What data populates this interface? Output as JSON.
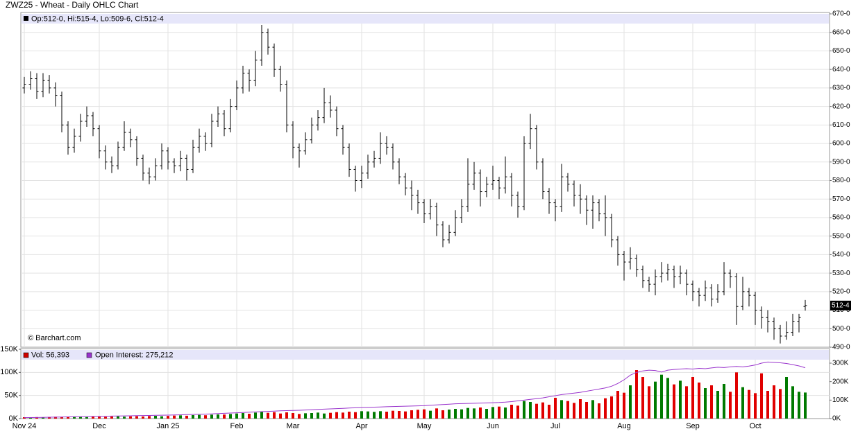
{
  "chart_data": [
    {
      "type": "ohlc",
      "title": "ZWZ25 - Wheat - Daily OHLC Chart",
      "legend_text": "Op:512-0, Hi:515-4, Lo:509-6, Cl:512-4",
      "watermark": "© Barchart.com",
      "color": "#000000",
      "grid": true,
      "ylim": [
        490,
        670
      ],
      "yticks": [
        {
          "value": 490,
          "label": "490-0"
        },
        {
          "value": 500,
          "label": "500-0"
        },
        {
          "value": 510,
          "label": "510-0"
        },
        {
          "value": 520,
          "label": "520-0"
        },
        {
          "value": 530,
          "label": "530-0"
        },
        {
          "value": 540,
          "label": "540-0"
        },
        {
          "value": 550,
          "label": "550-0"
        },
        {
          "value": 560,
          "label": "560-0"
        },
        {
          "value": 570,
          "label": "570-0"
        },
        {
          "value": 580,
          "label": "580-0"
        },
        {
          "value": 590,
          "label": "590-0"
        },
        {
          "value": 600,
          "label": "600-0"
        },
        {
          "value": 610,
          "label": "610-0"
        },
        {
          "value": 620,
          "label": "620-0"
        },
        {
          "value": 630,
          "label": "630-0"
        },
        {
          "value": 640,
          "label": "640-0"
        },
        {
          "value": 650,
          "label": "650-0"
        },
        {
          "value": 660,
          "label": "660-0"
        },
        {
          "value": 670,
          "label": "670-0"
        }
      ],
      "last_price_label": {
        "value": 512.5,
        "label": "512-4"
      },
      "ohlc": [
        [
          630,
          636,
          627,
          632
        ],
        [
          632,
          639,
          629,
          635
        ],
        [
          635,
          638,
          624,
          628
        ],
        [
          628,
          638,
          625,
          634
        ],
        [
          634,
          637,
          627,
          630
        ],
        [
          630,
          633,
          620,
          626
        ],
        [
          626,
          628,
          606,
          610
        ],
        [
          610,
          612,
          594,
          598
        ],
        [
          598,
          608,
          595,
          604
        ],
        [
          604,
          616,
          601,
          612
        ],
        [
          612,
          620,
          609,
          615
        ],
        [
          615,
          617,
          604,
          608
        ],
        [
          608,
          610,
          592,
          596
        ],
        [
          596,
          599,
          586,
          590
        ],
        [
          590,
          593,
          584,
          588
        ],
        [
          588,
          601,
          586,
          598
        ],
        [
          598,
          612,
          596,
          606
        ],
        [
          606,
          608,
          598,
          602
        ],
        [
          602,
          604,
          588,
          592
        ],
        [
          592,
          594,
          580,
          584
        ],
        [
          584,
          587,
          578,
          582
        ],
        [
          582,
          592,
          580,
          588
        ],
        [
          588,
          600,
          586,
          596
        ],
        [
          596,
          598,
          586,
          590
        ],
        [
          590,
          592,
          584,
          588
        ],
        [
          588,
          596,
          585,
          592
        ],
        [
          592,
          594,
          580,
          586
        ],
        [
          586,
          602,
          584,
          598
        ],
        [
          598,
          608,
          595,
          604
        ],
        [
          604,
          606,
          596,
          600
        ],
        [
          600,
          616,
          598,
          612
        ],
        [
          612,
          620,
          609,
          616
        ],
        [
          616,
          618,
          604,
          608
        ],
        [
          608,
          624,
          606,
          620
        ],
        [
          620,
          634,
          618,
          630
        ],
        [
          630,
          642,
          627,
          638
        ],
        [
          638,
          640,
          628,
          634
        ],
        [
          634,
          650,
          631,
          645
        ],
        [
          645,
          664,
          642,
          660
        ],
        [
          660,
          662,
          648,
          652
        ],
        [
          652,
          654,
          636,
          640
        ],
        [
          640,
          642,
          628,
          632
        ],
        [
          632,
          634,
          606,
          610
        ],
        [
          610,
          612,
          592,
          598
        ],
        [
          598,
          600,
          587,
          596
        ],
        [
          596,
          606,
          594,
          602
        ],
        [
          602,
          614,
          600,
          610
        ],
        [
          610,
          618,
          607,
          614
        ],
        [
          614,
          630,
          611,
          622
        ],
        [
          622,
          626,
          614,
          618
        ],
        [
          618,
          620,
          604,
          608
        ],
        [
          608,
          610,
          594,
          598
        ],
        [
          598,
          600,
          582,
          586
        ],
        [
          586,
          588,
          574,
          580
        ],
        [
          580,
          588,
          576,
          584
        ],
        [
          584,
          594,
          581,
          590
        ],
        [
          590,
          596,
          587,
          592
        ],
        [
          592,
          606,
          589,
          600
        ],
        [
          600,
          604,
          594,
          598
        ],
        [
          598,
          600,
          586,
          590
        ],
        [
          590,
          592,
          578,
          582
        ],
        [
          582,
          584,
          572,
          576
        ],
        [
          576,
          580,
          564,
          572
        ],
        [
          572,
          575,
          562,
          568
        ],
        [
          568,
          570,
          557,
          562
        ],
        [
          562,
          570,
          559,
          566
        ],
        [
          566,
          568,
          550,
          556
        ],
        [
          556,
          558,
          544,
          548
        ],
        [
          548,
          556,
          546,
          552
        ],
        [
          552,
          564,
          550,
          560
        ],
        [
          560,
          570,
          557,
          566
        ],
        [
          566,
          592,
          563,
          578
        ],
        [
          578,
          590,
          575,
          584
        ],
        [
          584,
          586,
          566,
          574
        ],
        [
          574,
          582,
          571,
          578
        ],
        [
          578,
          588,
          575,
          580
        ],
        [
          580,
          582,
          570,
          576
        ],
        [
          576,
          593,
          573,
          582
        ],
        [
          582,
          584,
          566,
          572
        ],
        [
          572,
          574,
          560,
          566
        ],
        [
          566,
          604,
          564,
          600
        ],
        [
          600,
          616,
          597,
          608
        ],
        [
          608,
          610,
          586,
          590
        ],
        [
          590,
          592,
          570,
          574
        ],
        [
          574,
          576,
          562,
          568
        ],
        [
          568,
          570,
          558,
          566
        ],
        [
          566,
          589,
          563,
          582
        ],
        [
          582,
          584,
          574,
          578
        ],
        [
          578,
          580,
          566,
          572
        ],
        [
          572,
          578,
          562,
          570
        ],
        [
          570,
          572,
          556,
          564
        ],
        [
          564,
          572,
          554,
          568
        ],
        [
          568,
          570,
          558,
          562
        ],
        [
          562,
          572,
          550,
          560
        ],
        [
          560,
          562,
          544,
          548
        ],
        [
          548,
          550,
          534,
          540
        ],
        [
          540,
          542,
          526,
          536
        ],
        [
          536,
          544,
          532,
          538
        ],
        [
          538,
          540,
          528,
          532
        ],
        [
          532,
          534,
          522,
          526
        ],
        [
          526,
          528,
          520,
          524
        ],
        [
          524,
          532,
          518,
          528
        ],
        [
          528,
          536,
          525,
          530
        ],
        [
          530,
          535,
          526,
          532
        ],
        [
          532,
          534,
          522,
          528
        ],
        [
          528,
          534,
          524,
          530
        ],
        [
          530,
          532,
          518,
          524
        ],
        [
          524,
          526,
          515,
          520
        ],
        [
          520,
          522,
          512,
          518
        ],
        [
          518,
          526,
          515,
          522
        ],
        [
          522,
          524,
          512,
          516
        ],
        [
          516,
          524,
          514,
          520
        ],
        [
          520,
          536,
          518,
          530
        ],
        [
          530,
          532,
          522,
          528
        ],
        [
          528,
          530,
          502,
          512
        ],
        [
          512,
          528,
          510,
          520
        ],
        [
          520,
          522,
          512,
          518
        ],
        [
          518,
          520,
          502,
          510
        ],
        [
          510,
          512,
          500,
          506
        ],
        [
          506,
          510,
          498,
          504
        ],
        [
          504,
          506,
          494,
          500
        ],
        [
          500,
          502,
          492,
          496
        ],
        [
          496,
          504,
          494,
          498
        ],
        [
          498,
          508,
          496,
          504
        ],
        [
          504,
          508,
          498,
          506
        ],
        [
          512,
          515.5,
          509.75,
          512.5
        ]
      ]
    },
    {
      "type": "bar",
      "grid": true,
      "categories": [
        "Nov 24",
        null,
        null,
        null,
        null,
        null,
        null,
        null,
        null,
        null,
        null,
        null,
        "Dec",
        null,
        null,
        null,
        null,
        null,
        null,
        null,
        null,
        null,
        null,
        "Jan 25",
        null,
        null,
        null,
        null,
        null,
        null,
        null,
        null,
        null,
        null,
        "Feb",
        null,
        null,
        null,
        null,
        null,
        null,
        null,
        null,
        "Mar",
        null,
        null,
        null,
        null,
        null,
        null,
        null,
        null,
        null,
        null,
        "Apr",
        null,
        null,
        null,
        null,
        null,
        null,
        null,
        null,
        null,
        "May",
        null,
        null,
        null,
        null,
        null,
        null,
        null,
        null,
        null,
        null,
        "Jun",
        null,
        null,
        null,
        null,
        null,
        null,
        null,
        null,
        null,
        "Jul",
        null,
        null,
        null,
        null,
        null,
        null,
        null,
        null,
        null,
        null,
        "Aug",
        null,
        null,
        null,
        null,
        null,
        null,
        null,
        null,
        null,
        null,
        "Sep",
        null,
        null,
        null,
        null,
        null,
        null,
        null,
        null,
        null,
        "Oct",
        null,
        null,
        null,
        null,
        null,
        null,
        null,
        null
      ],
      "ylim": [
        0,
        150000
      ],
      "yticks": [
        {
          "value": 0,
          "label": "0K"
        },
        {
          "value": 50000,
          "label": "50K"
        },
        {
          "value": 100000,
          "label": "100K"
        },
        {
          "value": 150000,
          "label": "150K"
        }
      ],
      "y2lim": [
        0,
        375000
      ],
      "y2ticks": [
        {
          "value": 0,
          "label": "0K"
        },
        {
          "value": 100000,
          "label": "100K"
        },
        {
          "value": 200000,
          "label": "200K"
        },
        {
          "value": 300000,
          "label": "300K"
        }
      ],
      "series": [
        {
          "label": "Vol: 56,393",
          "color": "#cc0000",
          "up_color": "#007a00",
          "down_color": "#e00000",
          "values": [
            3000,
            2500,
            3200,
            2800,
            3500,
            4000,
            3800,
            3000,
            4200,
            3600,
            3300,
            4500,
            4000,
            3800,
            4400,
            5000,
            4200,
            4800,
            5200,
            4600,
            5500,
            6000,
            5000,
            5800,
            6500,
            7000,
            6200,
            7500,
            8000,
            7200,
            8500,
            9000,
            8800,
            10000,
            11000,
            12000,
            10500,
            13000,
            15000,
            12500,
            14000,
            11000,
            13500,
            12000,
            10000,
            11500,
            12000,
            13000,
            11000,
            12500,
            14000,
            13000,
            15000,
            14000,
            16000,
            15500,
            14500,
            16000,
            15000,
            17000,
            16500,
            15500,
            18000,
            19000,
            20000,
            17000,
            22000,
            18000,
            19500,
            21000,
            20000,
            23000,
            22000,
            24000,
            21000,
            25000,
            26000,
            24000,
            30000,
            28000,
            38000,
            36000,
            32000,
            35000,
            30000,
            45000,
            40000,
            38000,
            34000,
            42000,
            36000,
            40000,
            33000,
            44000,
            48000,
            60000,
            56000,
            72000,
            105000,
            90000,
            70000,
            80000,
            95000,
            88000,
            74000,
            82000,
            70000,
            90000,
            78000,
            66000,
            72000,
            60000,
            75000,
            58000,
            100000,
            68000,
            62000,
            55000,
            98000,
            60000,
            72000,
            64000,
            90000,
            70000,
            58000,
            56393
          ]
        },
        {
          "label": "Open Interest: 275,212",
          "color": "#9933cc",
          "axis": "y2",
          "values": [
            5000,
            5600,
            6200,
            6800,
            7400,
            8000,
            8600,
            9200,
            9800,
            10400,
            11000,
            11600,
            12200,
            12800,
            13400,
            14000,
            14600,
            15200,
            15800,
            16400,
            17000,
            17600,
            18200,
            18800,
            19500,
            20500,
            21500,
            22500,
            23500,
            24500,
            25500,
            27000,
            28500,
            30000,
            31500,
            33000,
            34500,
            36000,
            37500,
            39000,
            40500,
            42000,
            43000,
            44000,
            45000,
            46500,
            48000,
            49500,
            51000,
            52500,
            54000,
            55500,
            57000,
            58500,
            60000,
            61000,
            62000,
            63000,
            64000,
            65000,
            66000,
            67000,
            68000,
            69000,
            70000,
            72000,
            74000,
            76000,
            78000,
            80000,
            81000,
            82000,
            83000,
            84000,
            85000,
            86000,
            87000,
            89000,
            92000,
            96000,
            100000,
            104000,
            108000,
            112000,
            118000,
            124000,
            130000,
            134000,
            138000,
            142000,
            148000,
            154000,
            160000,
            166000,
            175000,
            190000,
            210000,
            235000,
            250000,
            258000,
            262000,
            260000,
            252000,
            262000,
            266000,
            268000,
            270000,
            268000,
            272000,
            270000,
            274000,
            278000,
            276000,
            280000,
            282000,
            280000,
            284000,
            290000,
            300000,
            306000,
            304000,
            302000,
            298000,
            292000,
            285000,
            275212
          ]
        }
      ]
    }
  ]
}
